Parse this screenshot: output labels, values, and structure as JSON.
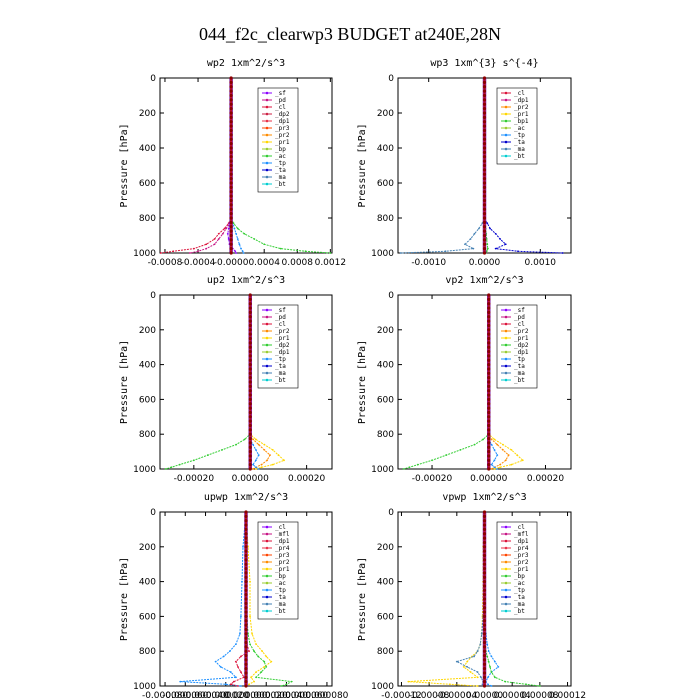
{
  "title": "044_f2c_clearwp3  BUDGET at240E,28N",
  "chart_data": [
    {
      "type": "line",
      "title": "wp2   1xm^2/s^3",
      "ylabel": "Pressure [hPa]",
      "xlim": [
        -0.00086,
        0.00122
      ],
      "ylim": [
        0,
        1000
      ],
      "xticks": [
        -0.0008,
        -0.0004,
        0.0,
        0.0004,
        0.0008,
        0.0012
      ],
      "xticklabels": [
        "-0.0008",
        "-0.0004",
        "-0.0000",
        "0.0004",
        "0.0008",
        "0.0012"
      ],
      "yticks": [
        0,
        200,
        400,
        600,
        800,
        1000
      ],
      "yticklabels": [
        "0",
        "200",
        "400",
        "600",
        "800",
        "1000"
      ],
      "legend": [
        "_sf",
        "_pd",
        "_cl",
        "_dp2",
        "_dp1",
        "_pr3",
        "_pr2",
        "_pr1",
        "_bp",
        "_ac",
        "_tp",
        "_ta",
        "_ma",
        "_bt"
      ],
      "colors": [
        "#8b00ff",
        "#c71585",
        "#dc143c",
        "#cc2244",
        "#e8334a",
        "#ff4500",
        "#ff8c00",
        "#ffd700",
        "#9acd32",
        "#32cd32",
        "#1e90ff",
        "#0000cd",
        "#4682b4",
        "#00ced1"
      ],
      "pressure": [
        0,
        200,
        400,
        600,
        700,
        760,
        800,
        830,
        860,
        890,
        920,
        950,
        975,
        990,
        1000
      ],
      "series": [
        {
          "values": [
            0,
            0,
            0,
            0,
            0,
            0,
            0,
            -3e-05,
            -8e-05,
            -0.00015,
            -0.0002,
            -0.0003,
            -0.00045,
            -0.0007,
            -0.00085
          ]
        },
        {
          "values": [
            0,
            0,
            0,
            0,
            0,
            0,
            0,
            -2e-05,
            -6e-05,
            -0.0001,
            -0.00015,
            -0.0002,
            -0.0003,
            -0.0004,
            -0.0005
          ]
        },
        {
          "values": [
            0,
            0,
            0,
            0,
            0,
            0,
            0,
            2e-05,
            4e-05,
            6e-05,
            8e-05,
            0.0001,
            0.00012,
            0.00014,
            0.00015
          ]
        },
        {
          "values": [
            0,
            0,
            0,
            0,
            0,
            0,
            0,
            3e-05,
            8e-05,
            0.00016,
            0.00028,
            0.0004,
            0.0006,
            0.0009,
            0.0012
          ]
        },
        {
          "values": [
            0,
            0,
            0,
            0,
            0,
            0,
            0,
            -2e-05,
            -3e-05,
            -4e-05,
            -3e-05,
            -2e-05,
            2e-05,
            5e-05,
            6e-05
          ]
        }
      ],
      "series_colors": [
        "#dc143c",
        "#c71585",
        "#1e90ff",
        "#32cd32",
        "#8b00ff"
      ]
    },
    {
      "type": "line",
      "title": "wp3   1xm^{3} s^{-4}",
      "ylabel": "Pressure [hPa]",
      "xlim": [
        -0.00155,
        0.00155
      ],
      "ylim": [
        0,
        1000
      ],
      "xticks": [
        -0.001,
        0.0,
        0.001
      ],
      "xticklabels": [
        "-0.0010",
        "0.0000",
        "0.0010"
      ],
      "yticks": [
        0,
        200,
        400,
        600,
        800,
        1000
      ],
      "yticklabels": [
        "0",
        "200",
        "400",
        "600",
        "800",
        "1000"
      ],
      "legend": [
        "_cl",
        "_dp1",
        "_pr2",
        "_pr1",
        "_bp1",
        "_ac",
        "_tp",
        "_ta",
        "_ma",
        "_bt"
      ],
      "colors": [
        "#dc143c",
        "#c71585",
        "#ff8c00",
        "#ffd700",
        "#32cd32",
        "#9acd32",
        "#1e90ff",
        "#0000cd",
        "#4682b4",
        "#00ced1"
      ],
      "pressure": [
        0,
        200,
        400,
        600,
        700,
        760,
        800,
        830,
        860,
        890,
        920,
        950,
        975,
        990,
        1000
      ],
      "series": [
        {
          "values": [
            0,
            0,
            0,
            0,
            0,
            0,
            0,
            5e-05,
            0.0001,
            0.0002,
            0.00028,
            0.00038,
            0.0002,
            0.0006,
            0.0014
          ]
        },
        {
          "values": [
            0,
            0,
            0,
            0,
            0,
            0,
            0,
            -4e-05,
            -0.0001,
            -0.00018,
            -0.00025,
            -0.00035,
            -0.0002,
            -0.0007,
            -0.0015
          ]
        },
        {
          "values": [
            0,
            0,
            0,
            0,
            0,
            0,
            0,
            1e-05,
            2e-05,
            3e-05,
            4e-05,
            5e-05,
            6e-05,
            4e-05,
            2e-05
          ]
        }
      ],
      "series_colors": [
        "#0000cd",
        "#4682b4",
        "#32cd32"
      ]
    },
    {
      "type": "line",
      "title": "up2   1xm^2/s^3",
      "ylabel": "Pressure [hPa]",
      "xlim": [
        -0.00032,
        0.00029
      ],
      "ylim": [
        0,
        1000
      ],
      "xticks": [
        -0.0002,
        0.0,
        0.0002
      ],
      "xticklabels": [
        "-0.00020",
        "0.00000",
        "0.00020"
      ],
      "yticks": [
        0,
        200,
        400,
        600,
        800,
        1000
      ],
      "yticklabels": [
        "0",
        "200",
        "400",
        "600",
        "800",
        "1000"
      ],
      "legend": [
        "_sf",
        "_pd",
        "_cl",
        "_pr2",
        "_pr1",
        "_dp2",
        "_dp1",
        "_tp",
        "_ta",
        "_ma",
        "_bt"
      ],
      "colors": [
        "#8b00ff",
        "#c71585",
        "#dc143c",
        "#ff8c00",
        "#ffd700",
        "#32cd32",
        "#9acd32",
        "#1e90ff",
        "#0000cd",
        "#4682b4",
        "#00ced1"
      ],
      "pressure": [
        0,
        200,
        400,
        600,
        700,
        760,
        800,
        830,
        860,
        890,
        920,
        950,
        975,
        990,
        1000
      ],
      "series": [
        {
          "values": [
            0,
            0,
            0,
            0,
            0,
            0,
            0,
            -2e-05,
            -5e-05,
            -0.0001,
            -0.00015,
            -0.0002,
            -0.00025,
            -0.00028,
            -0.0003
          ]
        },
        {
          "values": [
            0,
            0,
            0,
            0,
            0,
            0,
            0,
            2e-05,
            5e-05,
            8e-05,
            0.0001,
            0.00012,
            8e-05,
            4e-05,
            2e-05
          ]
        },
        {
          "values": [
            0,
            0,
            0,
            0,
            0,
            0,
            0,
            1e-05,
            3e-05,
            5e-05,
            7e-05,
            6e-05,
            4e-05,
            2e-05,
            1e-05
          ]
        },
        {
          "values": [
            0,
            0,
            0,
            0,
            0,
            0,
            0,
            0.0,
            1e-05,
            2e-05,
            3e-05,
            2e-05,
            1e-05,
            2e-05,
            3e-05
          ]
        }
      ],
      "series_colors": [
        "#32cd32",
        "#ffd700",
        "#ff8c00",
        "#1e90ff"
      ]
    },
    {
      "type": "line",
      "title": "vp2   1xm^2/s^3",
      "ylabel": "Pressure [hPa]",
      "xlim": [
        -0.00032,
        0.00029
      ],
      "ylim": [
        0,
        1000
      ],
      "xticks": [
        -0.0002,
        0.0,
        0.0002
      ],
      "xticklabels": [
        "-0.00020",
        "0.00000",
        "0.00020"
      ],
      "yticks": [
        0,
        200,
        400,
        600,
        800,
        1000
      ],
      "yticklabels": [
        "0",
        "200",
        "400",
        "600",
        "800",
        "1000"
      ],
      "legend": [
        "_sf",
        "_pd",
        "_cl",
        "_pr2",
        "_pr1",
        "_dp2",
        "_dp1",
        "_tp",
        "_ta",
        "_ma",
        "_bt"
      ],
      "colors": [
        "#8b00ff",
        "#c71585",
        "#dc143c",
        "#ff8c00",
        "#ffd700",
        "#32cd32",
        "#9acd32",
        "#1e90ff",
        "#0000cd",
        "#4682b4",
        "#00ced1"
      ],
      "pressure": [
        0,
        200,
        400,
        600,
        700,
        760,
        800,
        830,
        860,
        890,
        920,
        950,
        975,
        990,
        1000
      ],
      "series": [
        {
          "values": [
            0,
            0,
            0,
            0,
            0,
            0,
            0,
            -2e-05,
            -5e-05,
            -0.0001,
            -0.00015,
            -0.0002,
            -0.00025,
            -0.00028,
            -0.0003
          ]
        },
        {
          "values": [
            0,
            0,
            0,
            0,
            0,
            0,
            0,
            2e-05,
            5e-05,
            8e-05,
            0.0001,
            0.00012,
            8e-05,
            4e-05,
            2e-05
          ]
        },
        {
          "values": [
            0,
            0,
            0,
            0,
            0,
            0,
            0,
            1e-05,
            3e-05,
            5e-05,
            7e-05,
            6e-05,
            4e-05,
            2e-05,
            1e-05
          ]
        },
        {
          "values": [
            0,
            0,
            0,
            0,
            0,
            0,
            0,
            0.0,
            1e-05,
            2e-05,
            3e-05,
            2e-05,
            1e-05,
            2e-05,
            3e-05
          ]
        }
      ],
      "series_colors": [
        "#32cd32",
        "#ffd700",
        "#ff8c00",
        "#1e90ff"
      ]
    },
    {
      "type": "line",
      "title": "upwp   1xm^2/s^3",
      "ylabel": "Pressure [hPa]",
      "xlim": [
        -8.5e-05,
        8.5e-05
      ],
      "ylim": [
        0,
        1000
      ],
      "xticks": [
        -8e-05,
        -6e-05,
        -4e-05,
        -2e-05,
        0.0,
        2e-05,
        4e-05,
        6e-05,
        8e-05
      ],
      "xticklabels": [
        "-0.000080",
        "-0.000060",
        "-0.000040",
        "-0.000020",
        "0.000000",
        "0.000020",
        "0.000040",
        "0.000060",
        "0.000080"
      ],
      "yticks": [
        0,
        200,
        400,
        600,
        800,
        1000
      ],
      "yticklabels": [
        "0",
        "200",
        "400",
        "600",
        "800",
        "1000"
      ],
      "legend": [
        "_cl",
        "_mfl",
        "_dp1",
        "_pr4",
        "_pr3",
        "_pr2",
        "_pr1",
        "_bp",
        "_ac",
        "_tp",
        "_ta",
        "_ma",
        "_bt"
      ],
      "colors": [
        "#8b00ff",
        "#c71585",
        "#dc143c",
        "#e8334a",
        "#ff4500",
        "#ff8c00",
        "#ffd700",
        "#32cd32",
        "#9acd32",
        "#1e90ff",
        "#0000cd",
        "#4682b4",
        "#00ced1"
      ],
      "pressure": [
        0,
        200,
        400,
        600,
        700,
        760,
        800,
        830,
        860,
        890,
        920,
        950,
        975,
        990,
        1000
      ],
      "series": [
        {
          "values": [
            0,
            2e-06,
            4e-06,
            4e-06,
            6e-06,
            1e-05,
            1.6e-05,
            2e-05,
            2.5e-05,
            1.8e-05,
            1e-05,
            5e-06,
            8e-06,
            3e-06,
            0.0
          ]
        },
        {
          "values": [
            0,
            -3e-06,
            -4e-06,
            -5e-06,
            -6e-06,
            -1e-05,
            -1.6e-05,
            -2.2e-05,
            -3e-05,
            -2.5e-05,
            -1.5e-05,
            -1e-05,
            -6.5e-05,
            -2e-05,
            -5e-06
          ]
        },
        {
          "values": [
            0,
            0,
            1e-06,
            1e-06,
            2e-06,
            4e-06,
            8e-06,
            1.2e-05,
            1.8e-05,
            2e-05,
            1.5e-05,
            1e-05,
            4.5e-05,
            4e-05,
            3.5e-05
          ]
        },
        {
          "values": [
            0,
            0,
            0,
            0,
            0,
            1e-06,
            3e-06,
            -5e-06,
            -1e-05,
            -8e-06,
            -5e-06,
            -2e-06,
            -1.2e-05,
            -1.5e-05,
            -8e-06
          ]
        }
      ],
      "series_colors": [
        "#ffd700",
        "#1e90ff",
        "#32cd32",
        "#dc143c"
      ]
    },
    {
      "type": "line",
      "title": "vpwp   1xm^2/s^3",
      "ylabel": "Pressure [hPa]",
      "xlim": [
        -0.000125,
        0.000125
      ],
      "ylim": [
        0,
        1000
      ],
      "xticks": [
        -0.00012,
        -8e-05,
        -4e-05,
        0.0,
        4e-05,
        8e-05,
        0.00012
      ],
      "xticklabels": [
        "-0.00012",
        "-0.00008",
        "-0.00004",
        "0.00000",
        "0.00004",
        "0.00008",
        "0.00012"
      ],
      "yticks": [
        0,
        200,
        400,
        600,
        800,
        1000
      ],
      "yticklabels": [
        "0",
        "200",
        "400",
        "600",
        "800",
        "1000"
      ],
      "legend": [
        "_cl",
        "_mfl",
        "_dp1",
        "_pr4",
        "_pr3",
        "_pr2",
        "_pr1",
        "_bp",
        "_ac",
        "_tp",
        "_ta",
        "_ma",
        "_bt"
      ],
      "colors": [
        "#8b00ff",
        "#c71585",
        "#dc143c",
        "#e8334a",
        "#ff4500",
        "#ff8c00",
        "#ffd700",
        "#32cd32",
        "#9acd32",
        "#1e90ff",
        "#0000cd",
        "#4682b4",
        "#00ced1"
      ],
      "pressure": [
        0,
        200,
        400,
        600,
        700,
        760,
        800,
        830,
        860,
        890,
        920,
        950,
        975,
        990,
        1000
      ],
      "series": [
        {
          "values": [
            0,
            -2e-06,
            -2e-06,
            -3e-06,
            -4e-06,
            -6e-06,
            -1e-05,
            -1.8e-05,
            -2.5e-05,
            -3e-05,
            -2e-05,
            -1e-05,
            -0.00011,
            -5e-05,
            -1e-05
          ]
        },
        {
          "values": [
            0,
            0,
            0,
            0,
            2e-06,
            4e-06,
            6e-06,
            1e-05,
            1.5e-05,
            2e-05,
            1e-05,
            5e-06,
            2e-06,
            5e-06,
            1e-05
          ]
        },
        {
          "values": [
            0,
            0,
            0,
            -2e-06,
            -4e-06,
            -6e-06,
            -1e-05,
            -1.5e-05,
            -4e-05,
            -2.5e-05,
            -1e-05,
            -5e-06,
            -2e-06,
            -3e-06,
            -1e-06
          ]
        },
        {
          "values": [
            0,
            0,
            0,
            0,
            0,
            1e-06,
            2e-06,
            4e-06,
            6e-06,
            8e-06,
            1e-05,
            1.5e-05,
            3e-05,
            6e-05,
            8e-05
          ]
        }
      ],
      "series_colors": [
        "#ffd700",
        "#1e90ff",
        "#4682b4",
        "#32cd32"
      ]
    }
  ]
}
